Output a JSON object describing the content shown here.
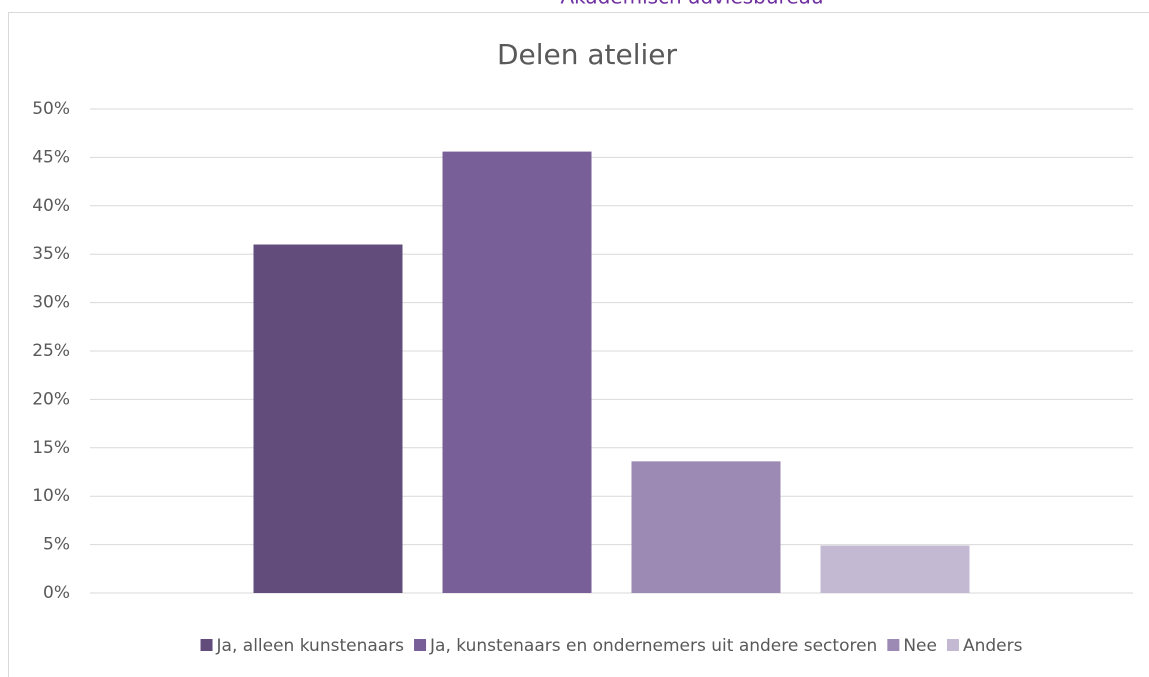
{
  "header": "Akademisch adviesbureau",
  "chart_data": {
    "type": "bar",
    "title": "Delen atelier",
    "categories": [
      null
    ],
    "series": [
      {
        "name": "Ja, alleen kunstenaars",
        "color": "#614c7c",
        "values": [
          36
        ]
      },
      {
        "name": "Ja, kunstenaars en ondernemers uit andere sectoren",
        "color": "#785f98",
        "values": [
          45.6
        ]
      },
      {
        "name": "Nee",
        "color": "#9c8ab5",
        "values": [
          13.6
        ]
      },
      {
        "name": "Anders",
        "color": "#c3b9d3",
        "values": [
          4.9
        ]
      }
    ],
    "ylim": [
      0,
      50
    ],
    "yticks": [
      {
        "value": 0,
        "label": "0%"
      },
      {
        "value": 5,
        "label": "5%"
      },
      {
        "value": 10,
        "label": "10%"
      },
      {
        "value": 15,
        "label": "15%"
      },
      {
        "value": 20,
        "label": "20%"
      },
      {
        "value": 25,
        "label": "25%"
      },
      {
        "value": 30,
        "label": "30%"
      },
      {
        "value": 35,
        "label": "35%"
      },
      {
        "value": 40,
        "label": "40%"
      },
      {
        "value": 45,
        "label": "45%"
      },
      {
        "value": 50,
        "label": "50%"
      }
    ],
    "grid": true,
    "legend": "bottom"
  }
}
